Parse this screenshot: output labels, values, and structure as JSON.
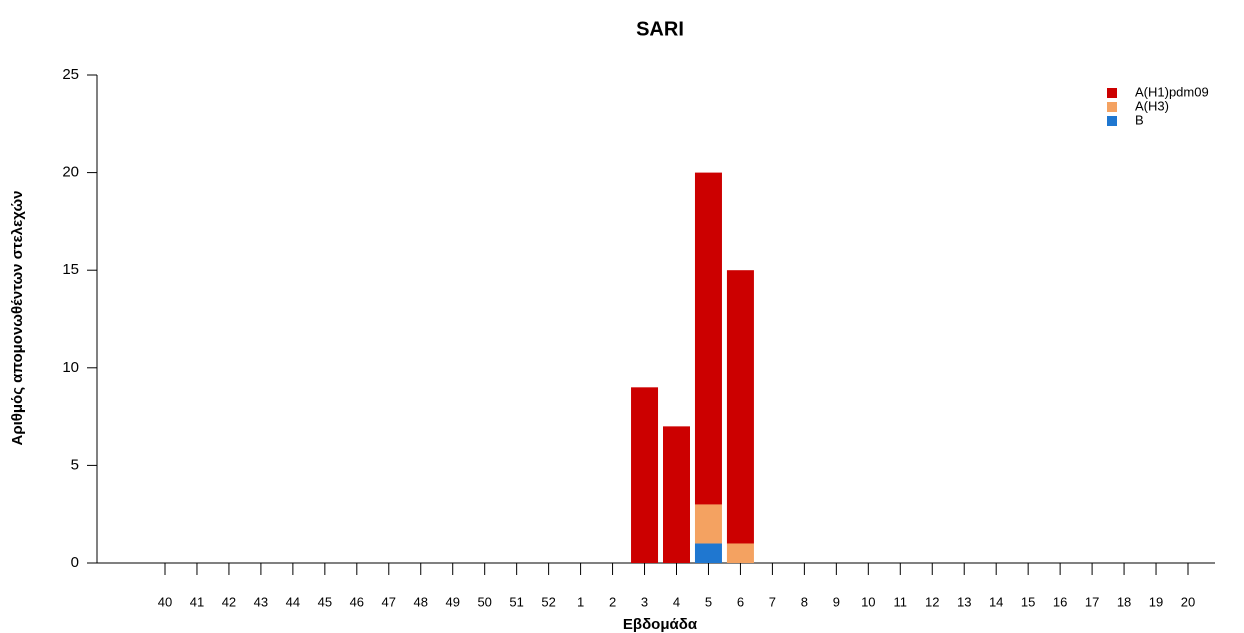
{
  "chart_data": {
    "type": "stacked_bar",
    "title": "SARI",
    "x_label": "Εβδομάδα",
    "y_label": "Αριθμός απομονωθέντων στελεχών",
    "categories": [
      "40",
      "41",
      "42",
      "43",
      "44",
      "45",
      "46",
      "47",
      "48",
      "49",
      "50",
      "51",
      "52",
      "1",
      "2",
      "3",
      "4",
      "5",
      "6",
      "7",
      "8",
      "9",
      "10",
      "11",
      "12",
      "13",
      "14",
      "15",
      "16",
      "17",
      "18",
      "19",
      "20"
    ],
    "series": [
      {
        "name": "A(H1)pdm09",
        "color": "#cc0000",
        "values": [
          0,
          0,
          0,
          0,
          0,
          0,
          0,
          0,
          0,
          0,
          0,
          0,
          0,
          0,
          0,
          9,
          7,
          17,
          14,
          0,
          0,
          0,
          0,
          0,
          0,
          0,
          0,
          0,
          0,
          0,
          0,
          0,
          0
        ]
      },
      {
        "name": "A(H3)",
        "color": "#f4a261",
        "values": [
          0,
          0,
          0,
          0,
          0,
          0,
          0,
          0,
          0,
          0,
          0,
          0,
          0,
          0,
          0,
          0,
          0,
          2,
          1,
          0,
          0,
          0,
          0,
          0,
          0,
          0,
          0,
          0,
          0,
          0,
          0,
          0,
          0
        ]
      },
      {
        "name": "B",
        "color": "#1f77d0",
        "values": [
          0,
          0,
          0,
          0,
          0,
          0,
          0,
          0,
          0,
          0,
          0,
          0,
          0,
          0,
          0,
          0,
          0,
          1,
          0,
          0,
          0,
          0,
          0,
          0,
          0,
          0,
          0,
          0,
          0,
          0,
          0,
          0,
          0
        ]
      }
    ],
    "ylim": [
      0,
      25
    ],
    "yticks": [
      0,
      5,
      10,
      15,
      20,
      25
    ],
    "grid": false,
    "legend": "top-right"
  }
}
